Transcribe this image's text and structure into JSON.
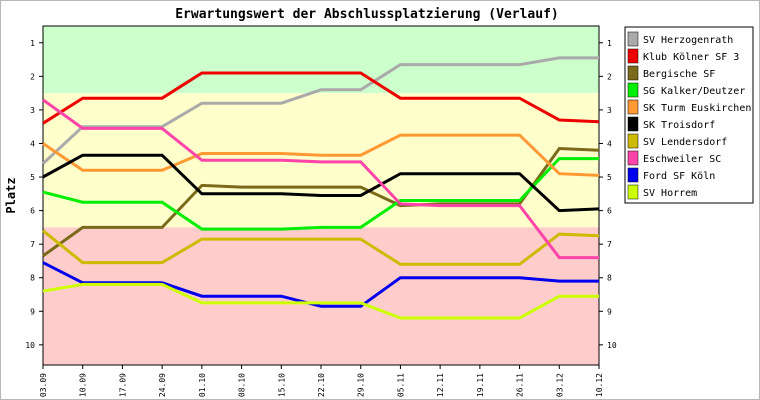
{
  "chart_data": {
    "type": "line",
    "title": "Erwartungswert der Abschlussplatzierung (Verlauf)",
    "xlabel": "",
    "ylabel": "Platz",
    "x": [
      "03.09",
      "10.09",
      "17.09",
      "24.09",
      "01.10",
      "08.10",
      "15.10",
      "22.10",
      "29.10",
      "05.11",
      "12.11",
      "19.11",
      "26.11",
      "03.12",
      "10.12"
    ],
    "y_ticks": [
      1,
      2,
      3,
      4,
      5,
      6,
      7,
      8,
      9,
      10
    ],
    "ylim": [
      10.6,
      0.5
    ],
    "y_inverted": true,
    "grid": false,
    "legend_position": "right",
    "zones": [
      {
        "from": 0.5,
        "to": 2.5,
        "color": "#ccffcc"
      },
      {
        "from": 2.5,
        "to": 6.5,
        "color": "#ffffcc"
      },
      {
        "from": 6.5,
        "to": 10.6,
        "color": "#ffcccc"
      }
    ],
    "series": [
      {
        "name": "SV Herzogenrath",
        "color": "#aaaaaa",
        "values": [
          4.6,
          3.5,
          3.5,
          3.5,
          2.8,
          2.8,
          2.8,
          2.4,
          2.4,
          1.65,
          1.65,
          1.65,
          1.65,
          1.45,
          1.45
        ]
      },
      {
        "name": "Klub Kölner SF 3",
        "color": "#ee0000",
        "values": [
          3.4,
          2.65,
          2.65,
          2.65,
          1.9,
          1.9,
          1.9,
          1.9,
          1.9,
          2.65,
          2.65,
          2.65,
          2.65,
          3.3,
          3.35
        ]
      },
      {
        "name": "Bergische SF",
        "color": "#7a6a1a",
        "values": [
          7.35,
          6.5,
          6.5,
          6.5,
          5.25,
          5.3,
          5.3,
          5.3,
          5.3,
          5.85,
          5.8,
          5.8,
          5.8,
          4.15,
          4.2
        ]
      },
      {
        "name": "SG Kalker/Deutzer",
        "color": "#00ee00",
        "values": [
          5.45,
          5.75,
          5.75,
          5.75,
          6.55,
          6.55,
          6.55,
          6.5,
          6.5,
          5.7,
          5.7,
          5.7,
          5.7,
          4.45,
          4.45
        ]
      },
      {
        "name": "SK Turm Euskirchen",
        "color": "#ff9933",
        "values": [
          4.0,
          4.8,
          4.8,
          4.8,
          4.3,
          4.3,
          4.3,
          4.35,
          4.35,
          3.75,
          3.75,
          3.75,
          3.75,
          4.9,
          4.95
        ]
      },
      {
        "name": "SK Troisdorf",
        "color": "#000000",
        "values": [
          5.0,
          4.35,
          4.35,
          4.35,
          5.5,
          5.5,
          5.5,
          5.55,
          5.55,
          4.9,
          4.9,
          4.9,
          4.9,
          6.0,
          5.95
        ]
      },
      {
        "name": "SV Lendersdorf",
        "color": "#ccbb00",
        "values": [
          6.6,
          7.55,
          7.55,
          7.55,
          6.85,
          6.85,
          6.85,
          6.85,
          6.85,
          7.6,
          7.6,
          7.6,
          7.6,
          6.7,
          6.75
        ]
      },
      {
        "name": "Eschweiler SC",
        "color": "#ff44aa",
        "values": [
          2.7,
          3.55,
          3.55,
          3.55,
          4.5,
          4.5,
          4.5,
          4.55,
          4.55,
          5.8,
          5.85,
          5.85,
          5.85,
          7.4,
          7.4
        ]
      },
      {
        "name": "Ford SF Köln",
        "color": "#0000ee",
        "values": [
          7.55,
          8.15,
          8.15,
          8.15,
          8.55,
          8.55,
          8.55,
          8.85,
          8.85,
          8.0,
          8.0,
          8.0,
          8.0,
          8.1,
          8.1
        ]
      },
      {
        "name": "SV Horrem",
        "color": "#ccff00",
        "values": [
          8.4,
          8.2,
          8.2,
          8.2,
          8.75,
          8.75,
          8.75,
          8.75,
          8.75,
          9.2,
          9.2,
          9.2,
          9.2,
          8.55,
          8.55
        ]
      }
    ]
  }
}
